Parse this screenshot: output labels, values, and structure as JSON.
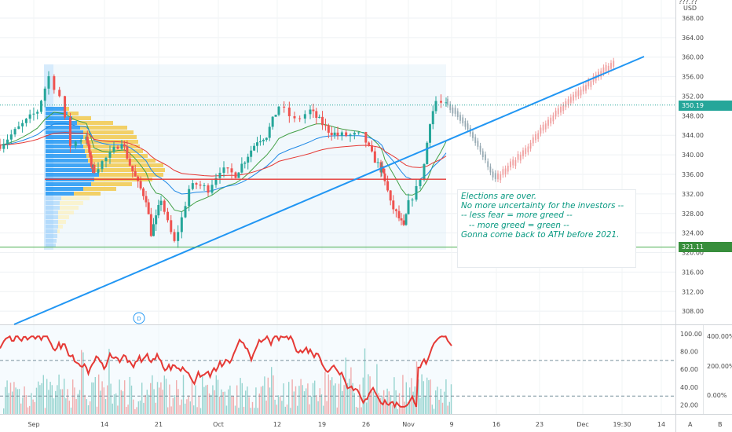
{
  "chart_data": {
    "type": "candlestick",
    "currency": "USD",
    "price_axis": {
      "ticks": [
        "368.00",
        "364.00",
        "360.00",
        "356.00",
        "352.00",
        "348.00",
        "344.00",
        "340.00",
        "336.00",
        "332.00",
        "328.00",
        "324.00",
        "320.00",
        "316.00",
        "312.00",
        "308.00"
      ],
      "ylim": [
        304.6,
        371.5
      ],
      "top_label_partial": "???.??"
    },
    "time_axis": [
      "Sep",
      "14",
      "21",
      "Oct",
      "12",
      "19",
      "26",
      "Nov",
      "9",
      "16",
      "23",
      "Dec",
      "19:30",
      "14"
    ],
    "last_price": {
      "value": "350.19",
      "color": "#26a69a"
    },
    "marked_level": {
      "value": "321.11",
      "color": "#4caf50"
    },
    "support_line_price": 335.0,
    "trendline": {
      "from": {
        "bar": -10,
        "price": 305
      },
      "to": {
        "bar": 133,
        "price": 360.7
      },
      "color": "#2196f3"
    },
    "candles": [],
    "projection": {
      "path": [
        [
          107,
          351
        ],
        [
          113,
          336
        ],
        [
          131,
          359
        ]
      ]
    },
    "oscillator_axis": {
      "ticks": [
        "100.00",
        "80.00",
        "60.00",
        "40.00",
        "20.00"
      ],
      "dashed_levels": [
        70,
        30
      ]
    },
    "volume_axis": {
      "ticks": [
        "400.00%",
        "200.00%",
        "0.00%"
      ]
    },
    "dividend_marker": "D",
    "corner_labels": [
      "A",
      "B"
    ],
    "annotation": {
      "lines": [
        "Elections are over.",
        "No more uncertainty for the investors --",
        "-- less fear = more greed --",
        "   -- more greed = green --",
        "",
        "Gonna come back to ATH before 2021."
      ]
    }
  }
}
